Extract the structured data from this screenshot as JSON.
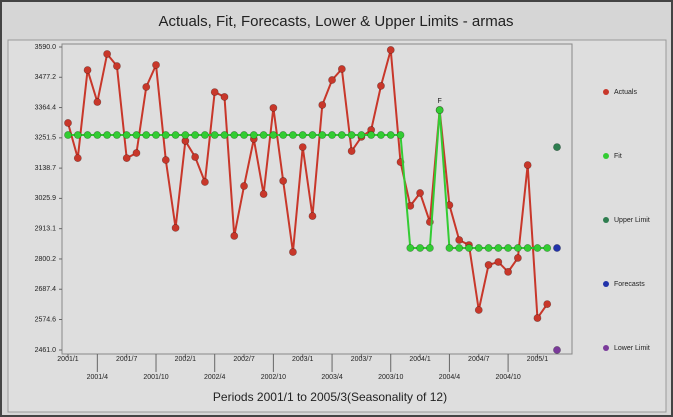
{
  "chart_data": {
    "type": "line",
    "title": "Actuals, Fit, Forecasts, Lower & Upper Limits - armas",
    "x_label": "Periods 2001/1 to 2005/3(Seasonality of 12)",
    "annotation": "F",
    "categories": [
      "2001/1",
      null,
      null,
      "2001/4",
      null,
      null,
      "2001/7",
      null,
      null,
      "2001/10",
      null,
      null,
      "2002/1",
      null,
      null,
      "2002/4",
      null,
      null,
      "2002/7",
      null,
      null,
      "2002/10",
      null,
      null,
      "2003/1",
      null,
      null,
      "2003/4",
      null,
      null,
      "2003/7",
      null,
      null,
      "2003/10",
      null,
      null,
      "2004/1",
      null,
      null,
      "2004/4",
      null,
      null,
      "2004/7",
      null,
      null,
      "2004/10",
      null,
      null,
      "2005/1",
      null,
      null
    ],
    "ylim": [
      2461.0,
      3590.0
    ],
    "yticks": [
      {
        "value": 2461.0,
        "label": "2461.0"
      },
      2574.6,
      2687.4,
      2800.2,
      2913.1,
      3025.9,
      3138.7,
      3251.5,
      3364.4,
      3477.2,
      {
        "value": 3590.0,
        "label": "3590.0"
      }
    ],
    "grid": false,
    "legend_position": "right",
    "series": [
      {
        "name": "Actuals",
        "color": "#c8372a",
        "line": true,
        "values": [
          3307,
          3176,
          3504,
          3385,
          3564,
          3519,
          3176,
          3195,
          3441,
          3523,
          3169,
          2916,
          3240,
          3180,
          3087,
          3422,
          3404,
          2886,
          3072,
          3247,
          3042,
          3363,
          3091,
          2826,
          3217,
          2960,
          3374,
          3467,
          3508,
          3202,
          3255,
          3281,
          3445,
          3579,
          3161,
          2998,
          3046,
          2938,
          3355,
          3001,
          2871,
          2852,
          2610,
          2778,
          2789,
          2752,
          2804,
          3150,
          2580,
          2632,
          null
        ]
      },
      {
        "name": "Fit",
        "color": "#33cc33",
        "line": true,
        "values": [
          3262,
          3262,
          3262,
          3262,
          3262,
          3262,
          3262,
          3262,
          3262,
          3262,
          3262,
          3262,
          3262,
          3262,
          3262,
          3262,
          3262,
          3262,
          3262,
          3262,
          3262,
          3262,
          3262,
          3262,
          3262,
          3262,
          3262,
          3262,
          3262,
          3262,
          3262,
          3262,
          3262,
          3262,
          3262,
          2841,
          2841,
          2841,
          3355,
          2841,
          2841,
          2841,
          2841,
          2841,
          2841,
          2841,
          2841,
          2841,
          2841,
          2841,
          null
        ]
      },
      {
        "name": "Upper Limit",
        "color": "#2e7d4f",
        "line": false,
        "values": [
          null,
          null,
          null,
          null,
          null,
          null,
          null,
          null,
          null,
          null,
          null,
          null,
          null,
          null,
          null,
          null,
          null,
          null,
          null,
          null,
          null,
          null,
          null,
          null,
          null,
          null,
          null,
          null,
          null,
          null,
          null,
          null,
          null,
          null,
          null,
          null,
          null,
          null,
          null,
          null,
          null,
          null,
          null,
          null,
          null,
          null,
          null,
          null,
          null,
          null,
          3217
        ]
      },
      {
        "name": "Forecasts",
        "color": "#2233aa",
        "line": false,
        "values": [
          null,
          null,
          null,
          null,
          null,
          null,
          null,
          null,
          null,
          null,
          null,
          null,
          null,
          null,
          null,
          null,
          null,
          null,
          null,
          null,
          null,
          null,
          null,
          null,
          null,
          null,
          null,
          null,
          null,
          null,
          null,
          null,
          null,
          null,
          null,
          null,
          null,
          null,
          null,
          null,
          null,
          null,
          null,
          null,
          null,
          null,
          null,
          null,
          null,
          null,
          2841
        ]
      },
      {
        "name": "Lower Limit",
        "color": "#7a3a9a",
        "line": false,
        "values": [
          null,
          null,
          null,
          null,
          null,
          null,
          null,
          null,
          null,
          null,
          null,
          null,
          null,
          null,
          null,
          null,
          null,
          null,
          null,
          null,
          null,
          null,
          null,
          null,
          null,
          null,
          null,
          null,
          null,
          null,
          null,
          null,
          null,
          null,
          null,
          null,
          null,
          null,
          null,
          null,
          null,
          null,
          null,
          null,
          null,
          null,
          null,
          null,
          null,
          null,
          2461
        ]
      }
    ]
  }
}
